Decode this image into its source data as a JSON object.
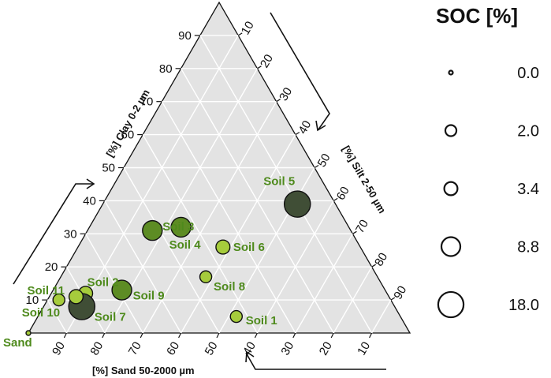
{
  "chart_data": {
    "type": "scatter",
    "subtype": "ternary",
    "axes": {
      "clay": {
        "label": "[%] Clay 0-2 µm",
        "ticks": [
          "10",
          "20",
          "30",
          "40",
          "50",
          "60",
          "70",
          "80",
          "90"
        ]
      },
      "silt": {
        "label": "[%] Silt 2-50 µm",
        "ticks": [
          "10",
          "20",
          "30",
          "40",
          "50",
          "60",
          "70",
          "80",
          "90"
        ]
      },
      "sand": {
        "label": "[%] Sand 50-2000 µm",
        "ticks": [
          "90",
          "80",
          "70",
          "60",
          "50",
          "40",
          "30",
          "20",
          "10"
        ]
      }
    },
    "corner_labels": {
      "sand": "Sand"
    },
    "grid": true,
    "grid_color": "#ffffff",
    "plot_background": "#e3e3e3",
    "marker_fill_light": "#a6cc3c",
    "marker_fill_mid": "#5d8c24",
    "marker_fill_dark": "#404e36",
    "label_color": "#4e8a1c",
    "points": [
      {
        "name": "Soil 1",
        "sand": 43,
        "silt": 52,
        "clay": 5,
        "soc": 2.0
      },
      {
        "name": "Soil 2",
        "sand": 79,
        "silt": 9,
        "clay": 12,
        "soc": 3.4
      },
      {
        "name": "Soil 3",
        "sand": 52,
        "silt": 17,
        "clay": 31,
        "soc": 8.8
      },
      {
        "name": "Soil 4",
        "sand": 44,
        "silt": 24,
        "clay": 32,
        "soc": 8.8
      },
      {
        "name": "Soil 5",
        "sand": 10,
        "silt": 51,
        "clay": 39,
        "soc": 18.0
      },
      {
        "name": "Soil 6",
        "sand": 36,
        "silt": 38,
        "clay": 26,
        "soc": 3.4
      },
      {
        "name": "Soil 7",
        "sand": 82,
        "silt": 10,
        "clay": 8,
        "soc": 18.0
      },
      {
        "name": "Soil 8",
        "sand": 45,
        "silt": 38,
        "clay": 17,
        "soc": 2.0
      },
      {
        "name": "Soil 9",
        "sand": 69,
        "silt": 18,
        "clay": 13,
        "soc": 8.8
      },
      {
        "name": "Soil 10",
        "sand": 87,
        "silt": 3,
        "clay": 10,
        "soc": 2.0
      },
      {
        "name": "Soil 11",
        "sand": 82,
        "silt": 7,
        "clay": 11,
        "soc": 3.4
      },
      {
        "name": "Sand",
        "sand": 100,
        "silt": 0,
        "clay": 0,
        "soc": 0.0
      }
    ],
    "legend": {
      "title": "SOC [%]",
      "placement": "right",
      "values": [
        "0.0",
        "2.0",
        "3.4",
        "8.8",
        "18.0"
      ]
    }
  }
}
